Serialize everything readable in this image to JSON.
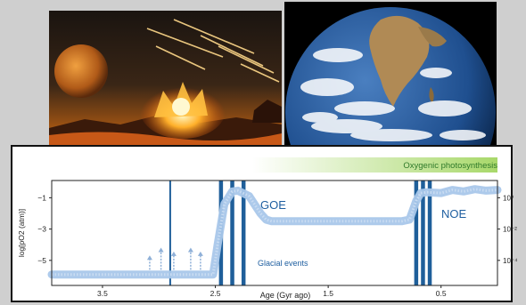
{
  "images": {
    "impact_scene": {
      "icon": "asteroid-impact-illustration"
    },
    "earth_photo": {
      "icon": "earth-from-space-photo"
    }
  },
  "chart_data": {
    "type": "line",
    "banner_label": "Oxygenic photosynthesis",
    "xlabel": "Age (Gyr ago)",
    "ylabel": "log[pO2 (atm)]",
    "xlim": [
      3.95,
      0
    ],
    "ylim": [
      -6.6,
      0.1
    ],
    "x_ticks": [
      "3.5",
      "2.5",
      "1.5",
      "0.5"
    ],
    "x_tick_values": [
      3.5,
      2.5,
      1.5,
      0.5
    ],
    "y_ticks_left": [
      "−1",
      "−3",
      "−5"
    ],
    "y_tick_values": [
      -1,
      -3,
      -5
    ],
    "y_ticks_right": [
      "10⁰",
      "10⁻²",
      "10⁻⁴"
    ],
    "annotations": {
      "goe": "GOE",
      "noe": "NOE",
      "glacial": "Glacial events"
    },
    "glacial_events": [
      2.9,
      2.45,
      2.35,
      2.25,
      0.72,
      0.66,
      0.6
    ],
    "whiffs": [
      2.95,
      2.9,
      3.05,
      2.75,
      2.6
    ],
    "series": [
      {
        "x": [
          3.95,
          3.6,
          3.2,
          2.8,
          2.6,
          2.52,
          2.48,
          2.42,
          2.35,
          2.3,
          2.2,
          2.1,
          2.05,
          2.0,
          1.9,
          1.6,
          1.3,
          1.0,
          0.85,
          0.78,
          0.72,
          0.68,
          0.62,
          0.5,
          0.4,
          0.3,
          0.2,
          0.1,
          0.0
        ],
        "y": [
          -5.9,
          -5.9,
          -5.9,
          -5.9,
          -5.9,
          -5.9,
          -4.0,
          -1.4,
          -0.6,
          -0.55,
          -0.9,
          -2.0,
          -2.4,
          -2.5,
          -2.5,
          -2.5,
          -2.5,
          -2.5,
          -2.5,
          -2.4,
          -1.2,
          -0.7,
          -0.65,
          -0.7,
          -0.5,
          -0.6,
          -0.45,
          -0.55,
          -0.5
        ]
      }
    ]
  }
}
